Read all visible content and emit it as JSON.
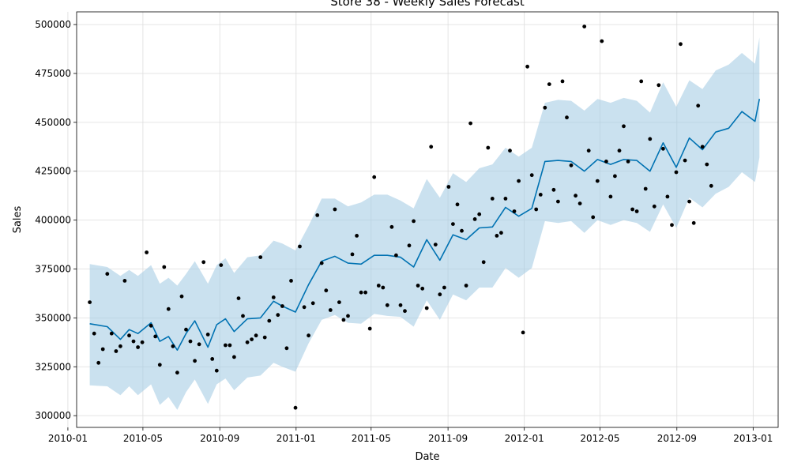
{
  "chart_data": {
    "type": "line",
    "title": "Store 38 - Weekly Sales Forecast",
    "xlabel": "Date",
    "ylabel": "Sales",
    "grid": true,
    "xlim": [
      "2010-01-15",
      "2013-02-10"
    ],
    "ylim": [
      294000,
      506500
    ],
    "x_ticks": [
      "2010-01",
      "2010-05",
      "2010-09",
      "2011-01",
      "2011-05",
      "2011-09",
      "2012-01",
      "2012-05",
      "2012-09",
      "2013-01"
    ],
    "y_ticks": [
      300000,
      325000,
      350000,
      375000,
      400000,
      425000,
      450000,
      475000,
      500000
    ],
    "colors": {
      "forecast": "#0072B2",
      "interval_fill": "#9ec9e2",
      "actual": "#000000",
      "grid": "#dddddd"
    },
    "series": [
      {
        "role": "forecast",
        "x": [
          "2010-02-05",
          "2010-03-05",
          "2010-03-26",
          "2010-04-09",
          "2010-04-23",
          "2010-05-14",
          "2010-05-28",
          "2010-06-11",
          "2010-06-25",
          "2010-07-09",
          "2010-07-23",
          "2010-08-13",
          "2010-08-27",
          "2010-09-10",
          "2010-09-24",
          "2010-10-15",
          "2010-11-05",
          "2010-11-26",
          "2010-12-10",
          "2010-12-31",
          "2011-01-21",
          "2011-02-11",
          "2011-03-04",
          "2011-03-25",
          "2011-04-15",
          "2011-05-06",
          "2011-05-27",
          "2011-06-17",
          "2011-07-08",
          "2011-07-29",
          "2011-08-19",
          "2011-09-09",
          "2011-09-30",
          "2011-10-21",
          "2011-11-11",
          "2011-12-02",
          "2011-12-23",
          "2012-01-13",
          "2012-02-03",
          "2012-02-24",
          "2012-03-16",
          "2012-04-06",
          "2012-04-27",
          "2012-05-18",
          "2012-06-08",
          "2012-06-29",
          "2012-07-20",
          "2012-08-10",
          "2012-08-31",
          "2012-09-21",
          "2012-10-12",
          "2012-11-02",
          "2012-11-23",
          "2012-12-14",
          "2013-01-04",
          "2013-01-11"
        ],
        "y": [
          347000,
          345500,
          339000,
          344000,
          342000,
          347500,
          338000,
          340500,
          333500,
          342000,
          348500,
          335000,
          346500,
          349500,
          343000,
          349500,
          350000,
          358500,
          356000,
          353000,
          367000,
          379000,
          381500,
          378000,
          377500,
          382000,
          382000,
          381000,
          376000,
          390000,
          379500,
          392500,
          390000,
          396000,
          396500,
          406500,
          402000,
          406000,
          430000,
          430500,
          430000,
          425000,
          431000,
          428500,
          431000,
          430500,
          425000,
          439500,
          427000,
          442000,
          436000,
          445000,
          447000,
          455500,
          450500,
          462000
        ]
      },
      {
        "role": "interval_upper",
        "x": [
          "2010-02-05",
          "2010-03-05",
          "2010-03-26",
          "2010-04-09",
          "2010-04-23",
          "2010-05-14",
          "2010-05-28",
          "2010-06-11",
          "2010-06-25",
          "2010-07-09",
          "2010-07-23",
          "2010-08-13",
          "2010-08-27",
          "2010-09-10",
          "2010-09-24",
          "2010-10-15",
          "2010-11-05",
          "2010-11-26",
          "2010-12-10",
          "2010-12-31",
          "2011-01-21",
          "2011-02-11",
          "2011-03-04",
          "2011-03-25",
          "2011-04-15",
          "2011-05-06",
          "2011-05-27",
          "2011-06-17",
          "2011-07-08",
          "2011-07-29",
          "2011-08-19",
          "2011-09-09",
          "2011-09-30",
          "2011-10-21",
          "2011-11-11",
          "2011-12-02",
          "2011-12-23",
          "2012-01-13",
          "2012-02-03",
          "2012-02-24",
          "2012-03-16",
          "2012-04-06",
          "2012-04-27",
          "2012-05-18",
          "2012-06-08",
          "2012-06-29",
          "2012-07-20",
          "2012-08-10",
          "2012-08-31",
          "2012-09-21",
          "2012-10-12",
          "2012-11-02",
          "2012-11-23",
          "2012-12-14",
          "2013-01-04",
          "2013-01-11"
        ],
        "y": [
          377500,
          376000,
          371500,
          374500,
          371500,
          377000,
          367500,
          370500,
          366500,
          372500,
          379000,
          367500,
          377000,
          380500,
          373000,
          381000,
          382000,
          389500,
          388000,
          384500,
          397000,
          411000,
          411000,
          407000,
          409000,
          413000,
          413000,
          410000,
          406000,
          421000,
          411500,
          424000,
          419500,
          426500,
          428500,
          437000,
          432500,
          437000,
          460000,
          461500,
          461000,
          456000,
          462000,
          460000,
          462500,
          461000,
          455000,
          470500,
          458000,
          471500,
          467000,
          476500,
          479500,
          485500,
          480000,
          493500
        ]
      },
      {
        "role": "interval_lower",
        "x": [
          "2010-02-05",
          "2010-03-05",
          "2010-03-26",
          "2010-04-09",
          "2010-04-23",
          "2010-05-14",
          "2010-05-28",
          "2010-06-11",
          "2010-06-25",
          "2010-07-09",
          "2010-07-23",
          "2010-08-13",
          "2010-08-27",
          "2010-09-10",
          "2010-09-24",
          "2010-10-15",
          "2010-11-05",
          "2010-11-26",
          "2010-12-10",
          "2010-12-31",
          "2011-01-21",
          "2011-02-11",
          "2011-03-04",
          "2011-03-25",
          "2011-04-15",
          "2011-05-06",
          "2011-05-27",
          "2011-06-17",
          "2011-07-08",
          "2011-07-29",
          "2011-08-19",
          "2011-09-09",
          "2011-09-30",
          "2011-10-21",
          "2011-11-11",
          "2011-12-02",
          "2011-12-23",
          "2012-01-13",
          "2012-02-03",
          "2012-02-24",
          "2012-03-16",
          "2012-04-06",
          "2012-04-27",
          "2012-05-18",
          "2012-06-08",
          "2012-06-29",
          "2012-07-20",
          "2012-08-10",
          "2012-08-31",
          "2012-09-21",
          "2012-10-12",
          "2012-11-02",
          "2012-11-23",
          "2012-12-14",
          "2013-01-04",
          "2013-01-11"
        ],
        "y": [
          315500,
          315000,
          310500,
          315000,
          310500,
          316000,
          305500,
          309500,
          303000,
          312000,
          318500,
          306000,
          316000,
          319000,
          313000,
          319500,
          320500,
          327000,
          325000,
          322500,
          337000,
          349000,
          351500,
          347500,
          347000,
          352000,
          351000,
          350500,
          345500,
          359000,
          349000,
          362000,
          359000,
          365500,
          365500,
          375500,
          370500,
          375500,
          399500,
          398500,
          399500,
          393500,
          400000,
          397500,
          400000,
          398500,
          394000,
          408000,
          396000,
          411500,
          406500,
          413500,
          417000,
          424500,
          419500,
          432000
        ]
      },
      {
        "role": "actual",
        "x": [
          "2010-02-05",
          "2010-02-12",
          "2010-02-19",
          "2010-02-26",
          "2010-03-05",
          "2010-03-12",
          "2010-03-19",
          "2010-03-26",
          "2010-04-02",
          "2010-04-09",
          "2010-04-16",
          "2010-04-23",
          "2010-04-30",
          "2010-05-07",
          "2010-05-14",
          "2010-05-21",
          "2010-05-28",
          "2010-06-04",
          "2010-06-11",
          "2010-06-18",
          "2010-06-25",
          "2010-07-02",
          "2010-07-09",
          "2010-07-16",
          "2010-07-23",
          "2010-07-30",
          "2010-08-06",
          "2010-08-13",
          "2010-08-20",
          "2010-08-27",
          "2010-09-03",
          "2010-09-10",
          "2010-09-17",
          "2010-09-24",
          "2010-10-01",
          "2010-10-08",
          "2010-10-15",
          "2010-10-22",
          "2010-10-29",
          "2010-11-05",
          "2010-11-12",
          "2010-11-19",
          "2010-11-26",
          "2010-12-03",
          "2010-12-10",
          "2010-12-17",
          "2010-12-24",
          "2010-12-31",
          "2011-01-07",
          "2011-01-14",
          "2011-01-21",
          "2011-01-28",
          "2011-02-04",
          "2011-02-11",
          "2011-02-18",
          "2011-02-25",
          "2011-03-04",
          "2011-03-11",
          "2011-03-18",
          "2011-03-25",
          "2011-04-01",
          "2011-04-08",
          "2011-04-15",
          "2011-04-22",
          "2011-04-29",
          "2011-05-06",
          "2011-05-13",
          "2011-05-20",
          "2011-05-27",
          "2011-06-03",
          "2011-06-10",
          "2011-06-17",
          "2011-06-24",
          "2011-07-01",
          "2011-07-08",
          "2011-07-15",
          "2011-07-22",
          "2011-07-29",
          "2011-08-05",
          "2011-08-12",
          "2011-08-19",
          "2011-08-26",
          "2011-09-02",
          "2011-09-09",
          "2011-09-16",
          "2011-09-23",
          "2011-09-30",
          "2011-10-07",
          "2011-10-14",
          "2011-10-21",
          "2011-10-28",
          "2011-11-04",
          "2011-11-11",
          "2011-11-18",
          "2011-11-25",
          "2011-12-02",
          "2011-12-09",
          "2011-12-16",
          "2011-12-23",
          "2011-12-30",
          "2012-01-06",
          "2012-01-13",
          "2012-01-20",
          "2012-01-27",
          "2012-02-03",
          "2012-02-10",
          "2012-02-17",
          "2012-02-24",
          "2012-03-02",
          "2012-03-09",
          "2012-03-16",
          "2012-03-23",
          "2012-03-30",
          "2012-04-06",
          "2012-04-13",
          "2012-04-20",
          "2012-04-27",
          "2012-05-04",
          "2012-05-11",
          "2012-05-18",
          "2012-05-25",
          "2012-06-01",
          "2012-06-08",
          "2012-06-15",
          "2012-06-22",
          "2012-06-29",
          "2012-07-06",
          "2012-07-13",
          "2012-07-20",
          "2012-07-27",
          "2012-08-03",
          "2012-08-10",
          "2012-08-17",
          "2012-08-24",
          "2012-08-31",
          "2012-09-07",
          "2012-09-14",
          "2012-09-21",
          "2012-09-28",
          "2012-10-05",
          "2012-10-12",
          "2012-10-19",
          "2012-10-26"
        ],
        "y": [
          358000,
          342000,
          327000,
          334000,
          372500,
          342000,
          333000,
          335500,
          369000,
          341000,
          338000,
          335000,
          337500,
          383500,
          346000,
          340500,
          326000,
          376000,
          354500,
          335500,
          322000,
          361000,
          344000,
          338000,
          328000,
          336500,
          378500,
          341500,
          329000,
          323000,
          377000,
          336000,
          336000,
          330000,
          360000,
          351000,
          337500,
          339000,
          341000,
          381000,
          340000,
          348500,
          360500,
          351500,
          356000,
          334500,
          369000,
          304000,
          386500,
          355500,
          341000,
          357500,
          402500,
          378000,
          364000,
          354000,
          405500,
          358000,
          349000,
          351000,
          382500,
          392000,
          363000,
          363000,
          344500,
          422000,
          366500,
          365500,
          356500,
          396500,
          382000,
          356500,
          353500,
          387000,
          399500,
          366500,
          365000,
          355000,
          437500,
          387500,
          362000,
          365500,
          417000,
          398000,
          408000,
          394500,
          366500,
          449500,
          400500,
          403000,
          378500,
          437000,
          411000,
          392000,
          393500,
          411000,
          435500,
          404500,
          420000,
          342500,
          478500,
          423000,
          405500,
          413000,
          457500,
          469500,
          415500,
          409500,
          471000,
          452500,
          428000,
          412500,
          408500,
          499000,
          435500,
          401500,
          420000,
          491500,
          430000,
          412000,
          422500,
          435500,
          448000,
          430000,
          405500,
          404500,
          471000,
          416000,
          441500,
          407000,
          469000,
          436500,
          412000,
          397500,
          424500,
          490000,
          430500,
          409500,
          398500,
          458500,
          437500,
          428500,
          417500
        ]
      }
    ]
  }
}
